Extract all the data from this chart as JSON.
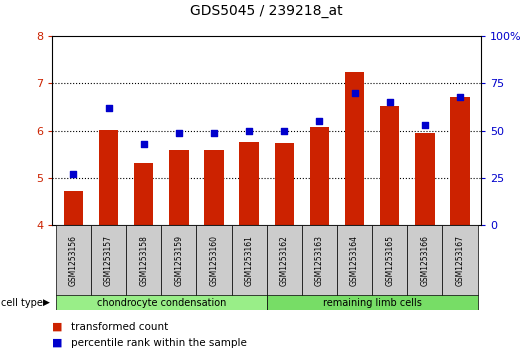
{
  "title": "GDS5045 / 239218_at",
  "samples": [
    "GSM1253156",
    "GSM1253157",
    "GSM1253158",
    "GSM1253159",
    "GSM1253160",
    "GSM1253161",
    "GSM1253162",
    "GSM1253163",
    "GSM1253164",
    "GSM1253165",
    "GSM1253166",
    "GSM1253167"
  ],
  "transformed_count": [
    4.73,
    6.02,
    5.32,
    5.58,
    5.58,
    5.76,
    5.74,
    6.08,
    7.24,
    6.52,
    5.96,
    6.72
  ],
  "percentile_rank": [
    27,
    62,
    43,
    49,
    49,
    50,
    50,
    55,
    70,
    65,
    53,
    68
  ],
  "ylim_left": [
    4,
    8
  ],
  "ylim_right": [
    0,
    100
  ],
  "yticks_left": [
    4,
    5,
    6,
    7,
    8
  ],
  "yticks_right": [
    0,
    25,
    50,
    75,
    100
  ],
  "bar_color": "#cc2200",
  "dot_color": "#0000cc",
  "grid_color": "#000000",
  "background_color": "#ffffff",
  "cell_types": [
    "chondrocyte condensation",
    "remaining limb cells"
  ],
  "cell_type_colors": [
    "#99ee88",
    "#77dd66"
  ],
  "cell_type_split": 6,
  "cell_type_label": "cell type",
  "group_bg": "#cccccc",
  "legend_items": [
    "transformed count",
    "percentile rank within the sample"
  ]
}
